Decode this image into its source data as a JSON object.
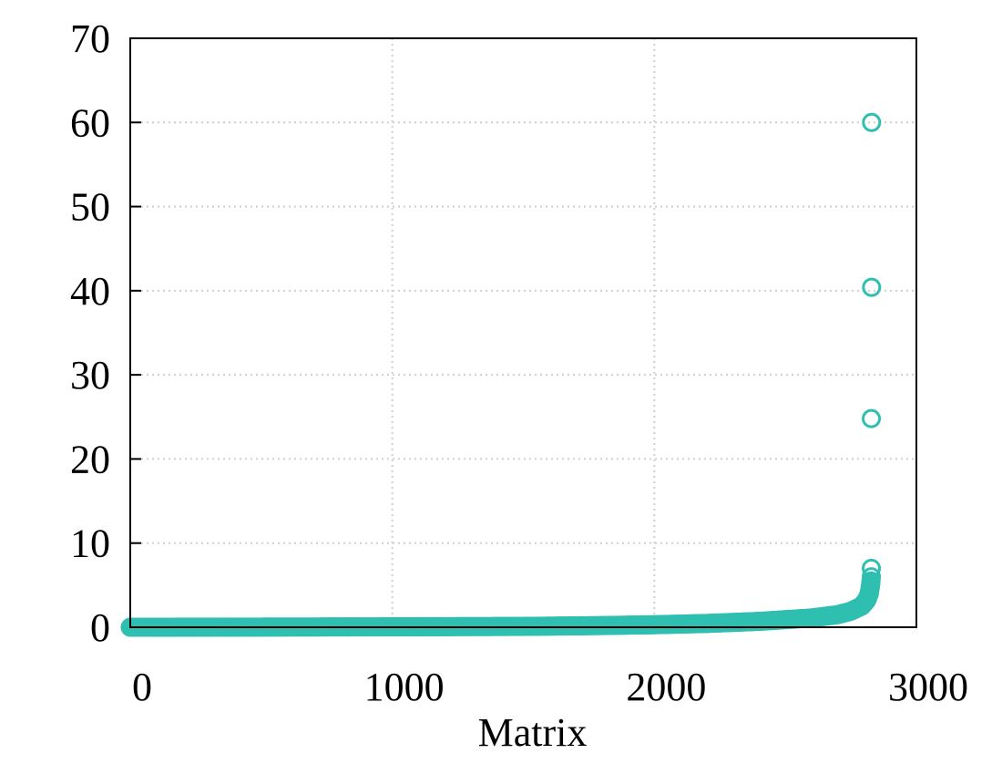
{
  "chart_data": {
    "type": "scatter",
    "title": "",
    "xlabel": "Matrix",
    "ylabel": "",
    "xlim": [
      0,
      3000
    ],
    "ylim": [
      0,
      70
    ],
    "xticks": [
      0,
      1000,
      2000,
      3000
    ],
    "yticks": [
      0,
      10,
      20,
      30,
      40,
      50,
      60,
      70
    ],
    "grid": true,
    "marker": "hollow-circle",
    "color": "#2ebfb0",
    "series": [
      {
        "points_sorted_curve": {
          "n_points": 2830,
          "description_values": [
            [
              0,
              0.0
            ],
            [
              500,
              0.02
            ],
            [
              1000,
              0.05
            ],
            [
              1500,
              0.1
            ],
            [
              1800,
              0.2
            ],
            [
              2000,
              0.3
            ],
            [
              2200,
              0.45
            ],
            [
              2400,
              0.7
            ],
            [
              2600,
              1.1
            ],
            [
              2700,
              1.5
            ],
            [
              2750,
              1.9
            ],
            [
              2790,
              2.5
            ],
            [
              2810,
              3.2
            ],
            [
              2820,
              4.0
            ],
            [
              2825,
              5.0
            ],
            [
              2827,
              5.5
            ],
            [
              2828,
              6.0
            ]
          ]
        },
        "outliers": [
          [
            2828,
            7.0
          ],
          [
            2828,
            24.8
          ],
          [
            2829,
            40.4
          ],
          [
            2829,
            60.0
          ]
        ]
      }
    ]
  }
}
